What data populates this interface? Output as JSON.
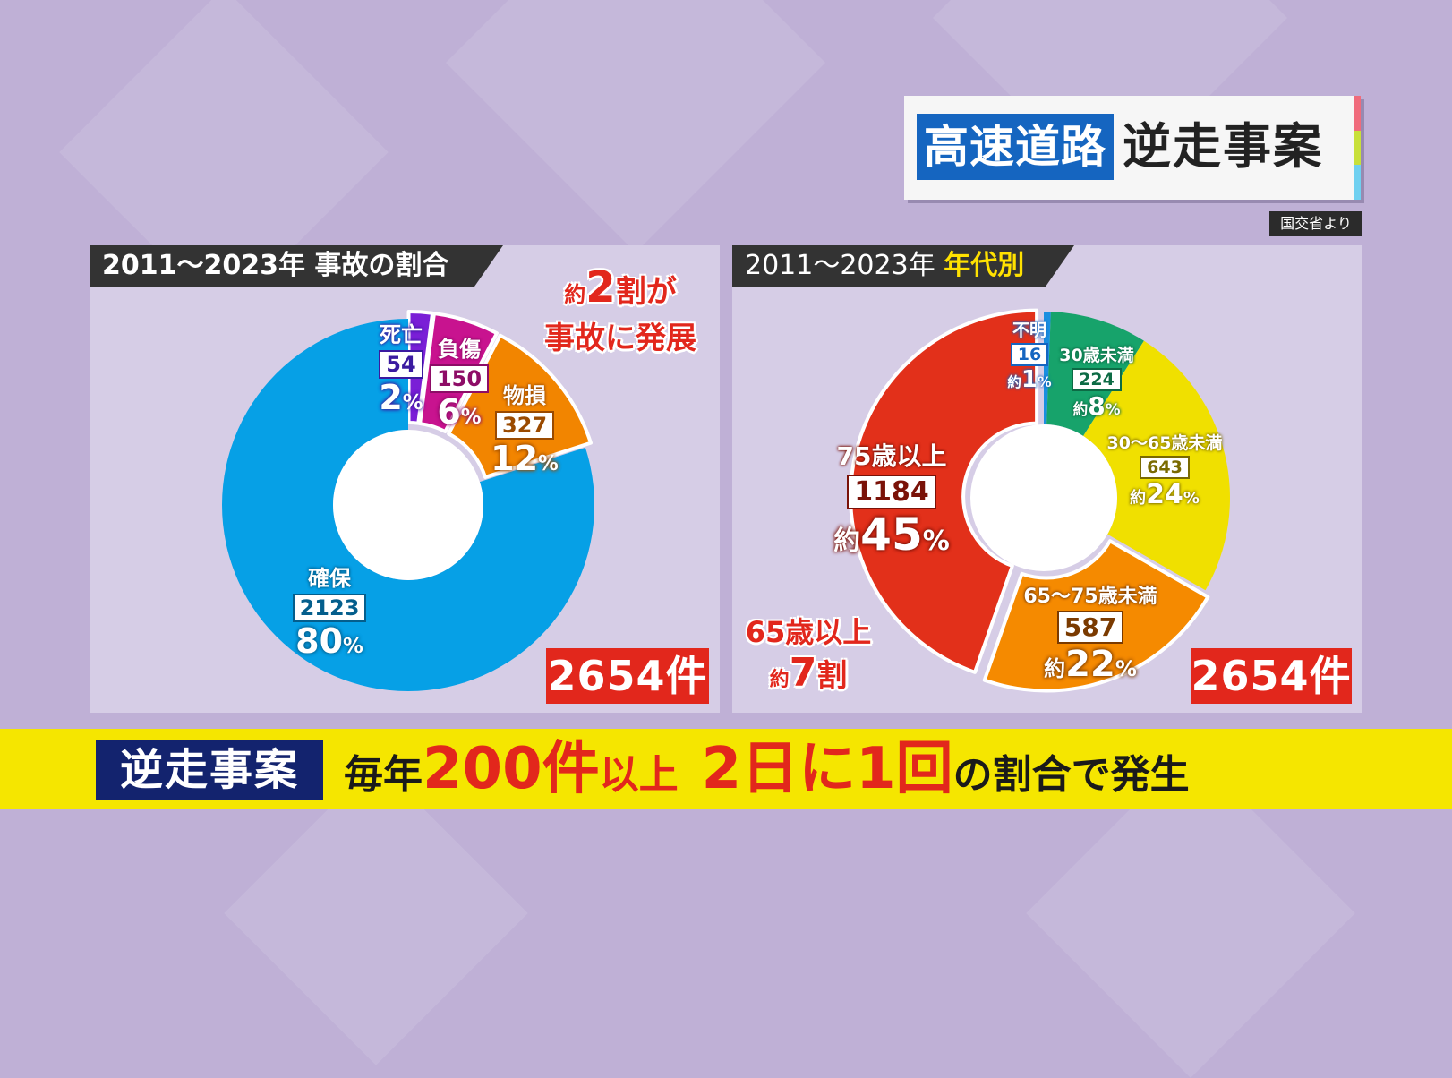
{
  "title": {
    "highlight": "高速道路",
    "main": "逆走事案"
  },
  "source": "国交省より",
  "colors": {
    "red": "#e2271c",
    "yellow_band": "#f5e600",
    "navy": "#13236e",
    "blue": "#1565c0"
  },
  "chart_data": [
    {
      "type": "pie",
      "title": "2011～2023年 事故の割合",
      "total_label": "2654件",
      "callout": {
        "prefix": "約",
        "number": "2",
        "suffix": "割が",
        "line2": "事故に発展"
      },
      "slices": [
        {
          "name": "死亡",
          "value": 54,
          "percent_label": "2",
          "percent_unit": "%",
          "color": "#7a1fd6",
          "exploded": true
        },
        {
          "name": "負傷",
          "value": 150,
          "percent_label": "6",
          "percent_unit": "%",
          "color": "#c8138f",
          "exploded": true
        },
        {
          "name": "物損",
          "value": 327,
          "percent_label": "12",
          "percent_unit": "%",
          "color": "#f28500",
          "exploded": true
        },
        {
          "name": "確保",
          "value": 2123,
          "percent_label": "80",
          "percent_unit": "%",
          "color": "#06a0e6",
          "exploded": false
        }
      ]
    },
    {
      "type": "pie",
      "title_prefix": "2011～2023年",
      "title_highlight": "年代別",
      "total_label": "2654件",
      "callout": {
        "line1": "65歳以上",
        "prefix": "約",
        "number": "7",
        "suffix": "割"
      },
      "slices": [
        {
          "name": "不明",
          "value": 16,
          "percent_prefix": "約",
          "percent_label": "1",
          "percent_unit": "%",
          "color": "#1a8fe0",
          "exploded": false
        },
        {
          "name": "30歳未満",
          "value": 224,
          "percent_prefix": "約",
          "percent_label": "8",
          "percent_unit": "%",
          "color": "#17a36b",
          "exploded": false
        },
        {
          "name": "30～65歳未満",
          "value": 643,
          "percent_prefix": "約",
          "percent_label": "24",
          "percent_unit": "%",
          "color": "#f0e000",
          "exploded": false
        },
        {
          "name": "65～75歳未満",
          "value": 587,
          "percent_prefix": "約",
          "percent_label": "22",
          "percent_unit": "%",
          "color": "#f58a00",
          "exploded": true
        },
        {
          "name": "75歳以上",
          "value": 1184,
          "percent_prefix": "約",
          "percent_label": "45",
          "percent_unit": "%",
          "color": "#e2301a",
          "exploded": true
        }
      ]
    }
  ],
  "banner": {
    "tag": "逆走事案",
    "seg1": "毎年",
    "seg2": "200件",
    "seg3": "以上",
    "seg4": "2日に1回",
    "seg5": "の割合で発生"
  }
}
